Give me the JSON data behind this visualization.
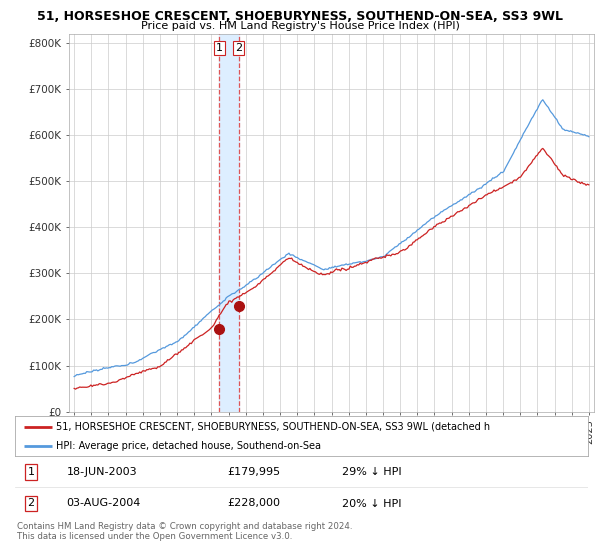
{
  "title_line1": "51, HORSESHOE CRESCENT, SHOEBURYNESS, SOUTHEND-ON-SEA, SS3 9WL",
  "title_line2": "Price paid vs. HM Land Registry's House Price Index (HPI)",
  "ylim": [
    0,
    820000
  ],
  "yticks": [
    0,
    100000,
    200000,
    300000,
    400000,
    500000,
    600000,
    700000,
    800000
  ],
  "ytick_labels": [
    "£0",
    "£100K",
    "£200K",
    "£300K",
    "£400K",
    "£500K",
    "£600K",
    "£700K",
    "£800K"
  ],
  "hpi_color": "#5599dd",
  "price_color": "#cc2222",
  "marker_color": "#aa1111",
  "vline_color": "#dd4444",
  "shade_color": "#ddeeff",
  "sale1_date": 2003.46,
  "sale1_price": 179995,
  "sale2_date": 2004.59,
  "sale2_price": 228000,
  "legend_price_label": "51, HORSESHOE CRESCENT, SHOEBURYNESS, SOUTHEND-ON-SEA, SS3 9WL (detached h",
  "legend_hpi_label": "HPI: Average price, detached house, Southend-on-Sea",
  "table_row1": [
    "1",
    "18-JUN-2003",
    "£179,995",
    "29% ↓ HPI"
  ],
  "table_row2": [
    "2",
    "03-AUG-2004",
    "£228,000",
    "20% ↓ HPI"
  ],
  "footer_line1": "Contains HM Land Registry data © Crown copyright and database right 2024.",
  "footer_line2": "This data is licensed under the Open Government Licence v3.0.",
  "background_color": "#ffffff",
  "grid_color": "#cccccc",
  "xlim_left": 1994.7,
  "xlim_right": 2025.3
}
